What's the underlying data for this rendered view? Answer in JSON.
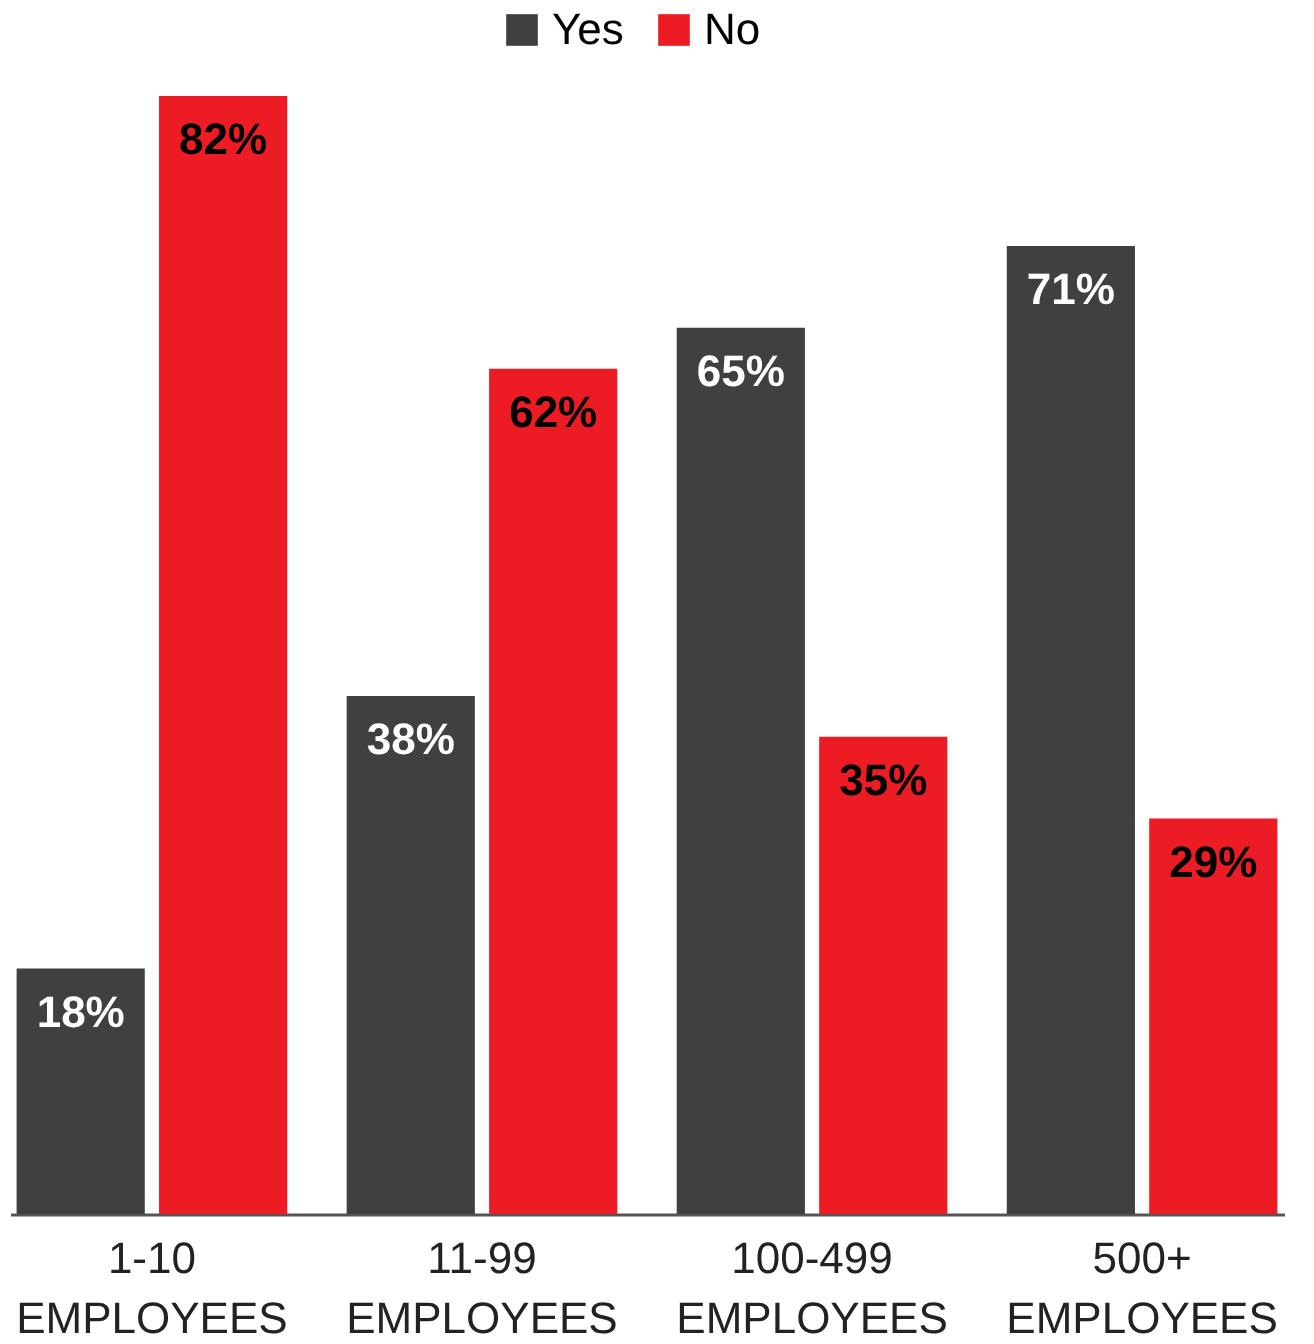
{
  "chart_data": {
    "type": "bar",
    "categories": [
      "1-10 EMPLOYEES",
      "11-99 EMPLOYEES",
      "100-499 EMPLOYEES",
      "500+ EMPLOYEES"
    ],
    "series": [
      {
        "name": "Yes",
        "color": "#404040",
        "values": [
          18,
          38,
          65,
          71
        ],
        "value_labels": [
          "18%",
          "38%",
          "65%",
          "71%"
        ]
      },
      {
        "name": "No",
        "color": "#ed1c24",
        "values": [
          82,
          62,
          35,
          29
        ],
        "value_labels": [
          "82%",
          "62%",
          "35%",
          "29%"
        ]
      }
    ],
    "legend": "top",
    "grid": false
  }
}
